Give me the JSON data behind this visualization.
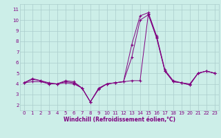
{
  "x": [
    0,
    1,
    2,
    3,
    4,
    5,
    6,
    7,
    8,
    9,
    10,
    11,
    12,
    13,
    14,
    15,
    16,
    17,
    18,
    19,
    20,
    21,
    22,
    23
  ],
  "line1": [
    4.1,
    4.5,
    4.3,
    4.1,
    4.0,
    4.3,
    4.2,
    3.6,
    2.3,
    3.5,
    4.0,
    4.1,
    4.2,
    7.7,
    10.4,
    10.7,
    8.5,
    5.3,
    4.3,
    4.1,
    3.9,
    5.0,
    5.2,
    5.0
  ],
  "line2": [
    4.1,
    4.4,
    4.3,
    4.0,
    4.0,
    4.2,
    4.1,
    3.6,
    2.3,
    3.6,
    4.0,
    4.1,
    4.2,
    6.5,
    10.0,
    10.5,
    8.3,
    5.2,
    4.2,
    4.1,
    3.9,
    5.0,
    5.2,
    5.0
  ],
  "line3": [
    4.1,
    4.2,
    4.2,
    4.0,
    4.0,
    4.1,
    4.0,
    3.6,
    2.3,
    3.5,
    4.0,
    4.1,
    4.2,
    4.3,
    4.3,
    10.6,
    8.4,
    5.2,
    4.2,
    4.1,
    4.0,
    5.0,
    5.2,
    5.0
  ],
  "line_color": "#800080",
  "bg_color": "#cceee8",
  "grid_color": "#aacccc",
  "axis_color": "#800080",
  "text_color": "#800080",
  "xlabel": "Windchill (Refroidissement éolien,°C)",
  "xlim": [
    -0.5,
    23.5
  ],
  "ylim": [
    1.5,
    11.5
  ],
  "yticks": [
    2,
    3,
    4,
    5,
    6,
    7,
    8,
    9,
    10,
    11
  ],
  "xticks": [
    0,
    1,
    2,
    3,
    4,
    5,
    6,
    7,
    8,
    9,
    10,
    11,
    12,
    13,
    14,
    15,
    16,
    17,
    18,
    19,
    20,
    21,
    22,
    23
  ]
}
